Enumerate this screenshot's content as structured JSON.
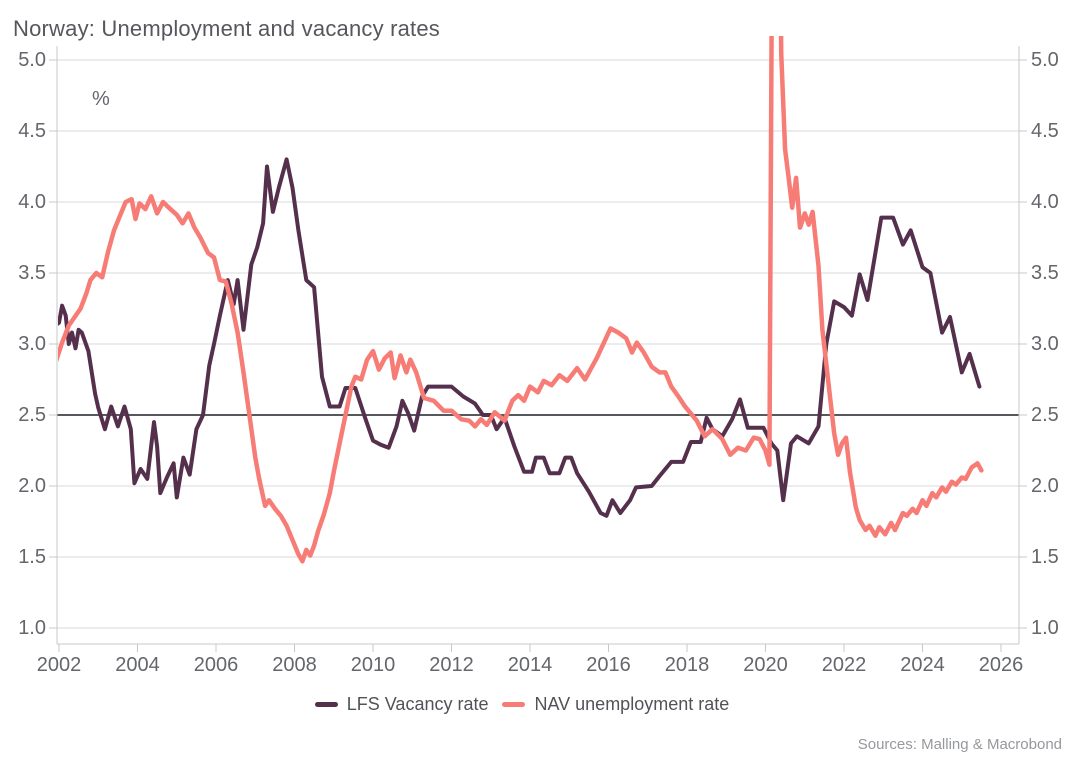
{
  "chart": {
    "title": "Norway: Unemployment and vacancy rates",
    "unit_label": "%",
    "sources": "Sources: Malling & Macrobond"
  },
  "chart_data": {
    "type": "line",
    "title": "Norway: Unemployment and vacancy rates",
    "ylabel": "%",
    "ylim": [
      1.0,
      5.0
    ],
    "xlim": [
      2001.9,
      2026.5
    ],
    "y_ticks": [
      1.0,
      1.5,
      2.0,
      2.5,
      3.0,
      3.5,
      4.0,
      4.5,
      5.0
    ],
    "x_ticks": [
      2002,
      2004,
      2006,
      2008,
      2010,
      2012,
      2014,
      2016,
      2018,
      2020,
      2022,
      2024,
      2026
    ],
    "grid": true,
    "reference_line_y": 2.5,
    "legend_position": "bottom-center",
    "colors": {
      "lfs": "#55304d",
      "nav": "#f77c76",
      "gridline": "#d9d9da",
      "reference_line": "#55585c",
      "axis": "#c7c8ca"
    },
    "series": [
      {
        "name": "LFS Vacancy rate",
        "color": "#55304d",
        "width": 4,
        "points": [
          [
            2001.9,
            3.13
          ],
          [
            2002.0,
            3.15
          ],
          [
            2002.08,
            3.27
          ],
          [
            2002.17,
            3.2
          ],
          [
            2002.25,
            3.0
          ],
          [
            2002.33,
            3.08
          ],
          [
            2002.42,
            2.97
          ],
          [
            2002.5,
            3.1
          ],
          [
            2002.58,
            3.08
          ],
          [
            2002.75,
            2.95
          ],
          [
            2002.92,
            2.65
          ],
          [
            2003.0,
            2.55
          ],
          [
            2003.17,
            2.4
          ],
          [
            2003.33,
            2.56
          ],
          [
            2003.5,
            2.42
          ],
          [
            2003.67,
            2.56
          ],
          [
            2003.83,
            2.4
          ],
          [
            2003.92,
            2.02
          ],
          [
            2004.08,
            2.12
          ],
          [
            2004.25,
            2.05
          ],
          [
            2004.42,
            2.45
          ],
          [
            2004.5,
            2.28
          ],
          [
            2004.58,
            1.95
          ],
          [
            2004.75,
            2.06
          ],
          [
            2004.92,
            2.16
          ],
          [
            2005.0,
            1.92
          ],
          [
            2005.17,
            2.2
          ],
          [
            2005.33,
            2.08
          ],
          [
            2005.5,
            2.4
          ],
          [
            2005.67,
            2.5
          ],
          [
            2005.83,
            2.85
          ],
          [
            2005.95,
            3.0
          ],
          [
            2006.1,
            3.2
          ],
          [
            2006.3,
            3.45
          ],
          [
            2006.45,
            3.28
          ],
          [
            2006.55,
            3.45
          ],
          [
            2006.7,
            3.1
          ],
          [
            2006.9,
            3.56
          ],
          [
            2007.05,
            3.68
          ],
          [
            2007.2,
            3.85
          ],
          [
            2007.3,
            4.25
          ],
          [
            2007.45,
            3.93
          ],
          [
            2007.6,
            4.1
          ],
          [
            2007.8,
            4.3
          ],
          [
            2007.95,
            4.1
          ],
          [
            2008.1,
            3.8
          ],
          [
            2008.3,
            3.45
          ],
          [
            2008.5,
            3.4
          ],
          [
            2008.7,
            2.77
          ],
          [
            2008.9,
            2.56
          ],
          [
            2009.15,
            2.56
          ],
          [
            2009.3,
            2.69
          ],
          [
            2009.55,
            2.69
          ],
          [
            2009.8,
            2.48
          ],
          [
            2010.0,
            2.32
          ],
          [
            2010.2,
            2.29
          ],
          [
            2010.4,
            2.27
          ],
          [
            2010.6,
            2.42
          ],
          [
            2010.75,
            2.6
          ],
          [
            2010.9,
            2.51
          ],
          [
            2011.05,
            2.39
          ],
          [
            2011.25,
            2.63
          ],
          [
            2011.4,
            2.7
          ],
          [
            2012.0,
            2.7
          ],
          [
            2012.3,
            2.63
          ],
          [
            2012.6,
            2.58
          ],
          [
            2012.8,
            2.5
          ],
          [
            2013.0,
            2.5
          ],
          [
            2013.15,
            2.4
          ],
          [
            2013.35,
            2.48
          ],
          [
            2013.6,
            2.28
          ],
          [
            2013.85,
            2.1
          ],
          [
            2014.05,
            2.1
          ],
          [
            2014.15,
            2.2
          ],
          [
            2014.35,
            2.2
          ],
          [
            2014.5,
            2.09
          ],
          [
            2014.75,
            2.09
          ],
          [
            2014.9,
            2.2
          ],
          [
            2015.05,
            2.2
          ],
          [
            2015.2,
            2.09
          ],
          [
            2015.5,
            1.96
          ],
          [
            2015.8,
            1.81
          ],
          [
            2015.95,
            1.79
          ],
          [
            2016.1,
            1.9
          ],
          [
            2016.3,
            1.81
          ],
          [
            2016.55,
            1.9
          ],
          [
            2016.7,
            1.99
          ],
          [
            2017.1,
            2.0
          ],
          [
            2017.3,
            2.07
          ],
          [
            2017.6,
            2.17
          ],
          [
            2017.9,
            2.17
          ],
          [
            2018.1,
            2.31
          ],
          [
            2018.35,
            2.31
          ],
          [
            2018.5,
            2.48
          ],
          [
            2018.65,
            2.4
          ],
          [
            2018.9,
            2.35
          ],
          [
            2019.15,
            2.47
          ],
          [
            2019.35,
            2.61
          ],
          [
            2019.55,
            2.41
          ],
          [
            2019.95,
            2.41
          ],
          [
            2020.15,
            2.3
          ],
          [
            2020.3,
            2.25
          ],
          [
            2020.45,
            1.9
          ],
          [
            2020.65,
            2.3
          ],
          [
            2020.8,
            2.35
          ],
          [
            2021.1,
            2.3
          ],
          [
            2021.35,
            2.42
          ],
          [
            2021.55,
            3.0
          ],
          [
            2021.75,
            3.3
          ],
          [
            2022.0,
            3.26
          ],
          [
            2022.2,
            3.2
          ],
          [
            2022.4,
            3.49
          ],
          [
            2022.6,
            3.31
          ],
          [
            2022.95,
            3.89
          ],
          [
            2023.25,
            3.89
          ],
          [
            2023.5,
            3.7
          ],
          [
            2023.7,
            3.8
          ],
          [
            2024.0,
            3.54
          ],
          [
            2024.2,
            3.5
          ],
          [
            2024.5,
            3.08
          ],
          [
            2024.7,
            3.19
          ],
          [
            2025.0,
            2.8
          ],
          [
            2025.2,
            2.93
          ],
          [
            2025.45,
            2.7
          ]
        ]
      },
      {
        "name": "NAV unemployment rate",
        "color": "#f77c76",
        "width": 4.5,
        "points": [
          [
            2001.9,
            2.86
          ],
          [
            2002.08,
            3.01
          ],
          [
            2002.25,
            3.13
          ],
          [
            2002.4,
            3.19
          ],
          [
            2002.55,
            3.25
          ],
          [
            2002.7,
            3.36
          ],
          [
            2002.8,
            3.45
          ],
          [
            2002.95,
            3.5
          ],
          [
            2003.1,
            3.47
          ],
          [
            2003.25,
            3.65
          ],
          [
            2003.4,
            3.8
          ],
          [
            2003.55,
            3.9
          ],
          [
            2003.7,
            4.0
          ],
          [
            2003.85,
            4.02
          ],
          [
            2003.95,
            3.88
          ],
          [
            2004.05,
            3.99
          ],
          [
            2004.2,
            3.95
          ],
          [
            2004.35,
            4.04
          ],
          [
            2004.5,
            3.92
          ],
          [
            2004.65,
            4.0
          ],
          [
            2004.8,
            3.96
          ],
          [
            2005.0,
            3.91
          ],
          [
            2005.15,
            3.85
          ],
          [
            2005.3,
            3.92
          ],
          [
            2005.45,
            3.82
          ],
          [
            2005.6,
            3.75
          ],
          [
            2005.8,
            3.64
          ],
          [
            2005.95,
            3.61
          ],
          [
            2006.1,
            3.45
          ],
          [
            2006.25,
            3.44
          ],
          [
            2006.4,
            3.28
          ],
          [
            2006.55,
            3.08
          ],
          [
            2006.7,
            2.8
          ],
          [
            2006.85,
            2.5
          ],
          [
            2007.0,
            2.2
          ],
          [
            2007.1,
            2.05
          ],
          [
            2007.25,
            1.86
          ],
          [
            2007.35,
            1.9
          ],
          [
            2007.5,
            1.84
          ],
          [
            2007.65,
            1.79
          ],
          [
            2007.8,
            1.72
          ],
          [
            2007.95,
            1.62
          ],
          [
            2008.1,
            1.52
          ],
          [
            2008.2,
            1.47
          ],
          [
            2008.3,
            1.55
          ],
          [
            2008.4,
            1.51
          ],
          [
            2008.5,
            1.58
          ],
          [
            2008.6,
            1.68
          ],
          [
            2008.75,
            1.8
          ],
          [
            2008.9,
            1.95
          ],
          [
            2009.0,
            2.1
          ],
          [
            2009.15,
            2.3
          ],
          [
            2009.3,
            2.5
          ],
          [
            2009.45,
            2.7
          ],
          [
            2009.55,
            2.77
          ],
          [
            2009.7,
            2.75
          ],
          [
            2009.85,
            2.89
          ],
          [
            2010.0,
            2.95
          ],
          [
            2010.15,
            2.82
          ],
          [
            2010.3,
            2.9
          ],
          [
            2010.45,
            2.94
          ],
          [
            2010.55,
            2.76
          ],
          [
            2010.7,
            2.92
          ],
          [
            2010.85,
            2.8
          ],
          [
            2010.95,
            2.89
          ],
          [
            2011.1,
            2.8
          ],
          [
            2011.3,
            2.62
          ],
          [
            2011.55,
            2.6
          ],
          [
            2011.8,
            2.53
          ],
          [
            2012.0,
            2.53
          ],
          [
            2012.25,
            2.47
          ],
          [
            2012.45,
            2.46
          ],
          [
            2012.6,
            2.42
          ],
          [
            2012.75,
            2.47
          ],
          [
            2012.9,
            2.43
          ],
          [
            2013.1,
            2.52
          ],
          [
            2013.35,
            2.46
          ],
          [
            2013.55,
            2.6
          ],
          [
            2013.7,
            2.64
          ],
          [
            2013.85,
            2.6
          ],
          [
            2014.0,
            2.7
          ],
          [
            2014.2,
            2.66
          ],
          [
            2014.35,
            2.74
          ],
          [
            2014.55,
            2.71
          ],
          [
            2014.75,
            2.78
          ],
          [
            2014.95,
            2.74
          ],
          [
            2015.2,
            2.83
          ],
          [
            2015.4,
            2.75
          ],
          [
            2015.7,
            2.9
          ],
          [
            2015.9,
            3.02
          ],
          [
            2016.05,
            3.11
          ],
          [
            2016.25,
            3.08
          ],
          [
            2016.45,
            3.04
          ],
          [
            2016.6,
            2.94
          ],
          [
            2016.72,
            3.01
          ],
          [
            2016.9,
            2.94
          ],
          [
            2017.1,
            2.84
          ],
          [
            2017.3,
            2.8
          ],
          [
            2017.45,
            2.8
          ],
          [
            2017.6,
            2.7
          ],
          [
            2017.78,
            2.63
          ],
          [
            2017.95,
            2.56
          ],
          [
            2018.1,
            2.51
          ],
          [
            2018.25,
            2.46
          ],
          [
            2018.45,
            2.35
          ],
          [
            2018.65,
            2.4
          ],
          [
            2018.9,
            2.33
          ],
          [
            2019.1,
            2.22
          ],
          [
            2019.3,
            2.27
          ],
          [
            2019.5,
            2.25
          ],
          [
            2019.7,
            2.34
          ],
          [
            2019.85,
            2.33
          ],
          [
            2020.0,
            2.25
          ],
          [
            2020.1,
            2.15
          ],
          [
            2020.25,
            10.4
          ],
          [
            2020.4,
            5.05
          ],
          [
            2020.5,
            4.37
          ],
          [
            2020.6,
            4.15
          ],
          [
            2020.68,
            3.96
          ],
          [
            2020.78,
            4.17
          ],
          [
            2020.88,
            3.82
          ],
          [
            2021.0,
            3.92
          ],
          [
            2021.1,
            3.84
          ],
          [
            2021.2,
            3.93
          ],
          [
            2021.35,
            3.55
          ],
          [
            2021.45,
            3.1
          ],
          [
            2021.55,
            2.86
          ],
          [
            2021.65,
            2.61
          ],
          [
            2021.75,
            2.37
          ],
          [
            2021.85,
            2.22
          ],
          [
            2021.95,
            2.3
          ],
          [
            2022.05,
            2.34
          ],
          [
            2022.15,
            2.1
          ],
          [
            2022.3,
            1.85
          ],
          [
            2022.4,
            1.76
          ],
          [
            2022.55,
            1.69
          ],
          [
            2022.65,
            1.72
          ],
          [
            2022.8,
            1.65
          ],
          [
            2022.9,
            1.71
          ],
          [
            2023.05,
            1.66
          ],
          [
            2023.2,
            1.74
          ],
          [
            2023.3,
            1.69
          ],
          [
            2023.5,
            1.81
          ],
          [
            2023.6,
            1.79
          ],
          [
            2023.75,
            1.84
          ],
          [
            2023.85,
            1.81
          ],
          [
            2024.0,
            1.9
          ],
          [
            2024.1,
            1.86
          ],
          [
            2024.25,
            1.95
          ],
          [
            2024.35,
            1.92
          ],
          [
            2024.5,
            1.99
          ],
          [
            2024.6,
            1.96
          ],
          [
            2024.75,
            2.03
          ],
          [
            2024.85,
            2.01
          ],
          [
            2025.0,
            2.06
          ],
          [
            2025.1,
            2.05
          ],
          [
            2025.25,
            2.13
          ],
          [
            2025.4,
            2.16
          ],
          [
            2025.5,
            2.11
          ]
        ]
      }
    ]
  }
}
